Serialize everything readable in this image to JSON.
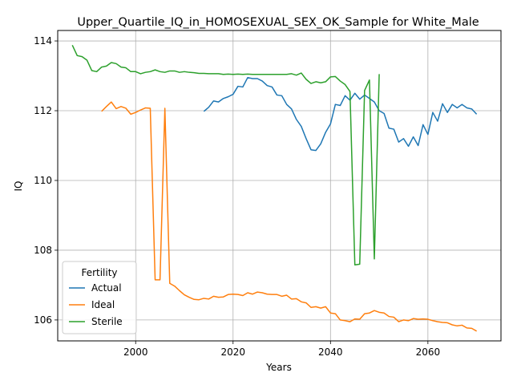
{
  "chart_data": {
    "type": "line",
    "title": "Upper_Quartile_IQ_in_HOMOSEXUAL_SEX_OK_Sample for White_Male",
    "xlabel": "Years",
    "ylabel": "IQ",
    "xlim": [
      1984,
      2075
    ],
    "ylim": [
      105.4,
      114.3
    ],
    "xticks": [
      2000,
      2020,
      2040,
      2060
    ],
    "yticks": [
      106,
      108,
      110,
      112,
      114
    ],
    "grid": true,
    "legend": {
      "title": "Fertility",
      "position": "lower-left"
    },
    "colors": {
      "Actual": "#1f77b4",
      "Ideal": "#ff7f0e",
      "Sterile": "#2ca02c"
    },
    "series": [
      {
        "name": "Actual",
        "x": [
          2014,
          2015,
          2016,
          2017,
          2018,
          2019,
          2020,
          2021,
          2022,
          2023,
          2024,
          2025,
          2026,
          2027,
          2028,
          2029,
          2030,
          2031,
          2032,
          2033,
          2034,
          2035,
          2036,
          2037,
          2038,
          2039,
          2040,
          2041,
          2042,
          2043,
          2044,
          2045,
          2046,
          2047,
          2048,
          2049,
          2050,
          2051,
          2052,
          2053,
          2054,
          2055,
          2056,
          2057,
          2058,
          2059,
          2060,
          2061,
          2062,
          2063,
          2064,
          2065,
          2066,
          2067,
          2068,
          2069,
          2070
        ],
        "y": [
          111.98,
          112.1,
          112.28,
          112.25,
          112.35,
          112.4,
          112.47,
          112.7,
          112.68,
          112.95,
          112.92,
          112.92,
          112.85,
          112.72,
          112.68,
          112.45,
          112.43,
          112.18,
          112.05,
          111.75,
          111.55,
          111.2,
          110.88,
          110.86,
          111.05,
          111.38,
          111.62,
          112.18,
          112.15,
          112.43,
          112.3,
          112.5,
          112.33,
          112.45,
          112.35,
          112.25,
          112.0,
          111.92,
          111.5,
          111.47,
          111.1,
          111.2,
          110.98,
          111.25,
          111.0,
          111.6,
          111.32,
          111.95,
          111.7,
          112.2,
          111.95,
          112.18,
          112.08,
          112.18,
          112.08,
          112.05,
          111.9
        ]
      },
      {
        "name": "Ideal",
        "x": [
          1993,
          1994,
          1995,
          1996,
          1997,
          1998,
          1999,
          2000,
          2001,
          2002,
          2003,
          2004,
          2005,
          2006,
          2007,
          2008,
          2009,
          2010,
          2011,
          2012,
          2013,
          2014,
          2015,
          2016,
          2017,
          2018,
          2019,
          2020,
          2021,
          2022,
          2023,
          2024,
          2025,
          2026,
          2027,
          2028,
          2029,
          2030,
          2031,
          2032,
          2033,
          2034,
          2035,
          2036,
          2037,
          2038,
          2039,
          2040,
          2041,
          2042,
          2043,
          2044,
          2045,
          2046,
          2047,
          2048,
          2049,
          2050,
          2051,
          2052,
          2053,
          2054,
          2055,
          2056,
          2057,
          2058,
          2059,
          2060,
          2061,
          2062,
          2063,
          2064,
          2065,
          2066,
          2067,
          2068,
          2069,
          2070
        ],
        "y": [
          111.98,
          112.12,
          112.25,
          112.06,
          112.12,
          112.07,
          111.9,
          111.95,
          112.02,
          112.08,
          112.07,
          107.15,
          107.15,
          112.07,
          107.05,
          106.97,
          106.84,
          106.72,
          106.65,
          106.59,
          106.58,
          106.62,
          106.6,
          106.68,
          106.65,
          106.66,
          106.73,
          106.74,
          106.73,
          106.7,
          106.78,
          106.74,
          106.8,
          106.78,
          106.74,
          106.73,
          106.73,
          106.68,
          106.71,
          106.6,
          106.61,
          106.52,
          106.49,
          106.36,
          106.38,
          106.34,
          106.38,
          106.2,
          106.18,
          106.0,
          105.98,
          105.95,
          106.03,
          106.02,
          106.18,
          106.2,
          106.27,
          106.22,
          106.2,
          106.1,
          106.08,
          105.95,
          106.0,
          105.98,
          106.04,
          106.02,
          106.03,
          106.02,
          105.98,
          105.95,
          105.93,
          105.92,
          105.86,
          105.83,
          105.85,
          105.77,
          105.76,
          105.68
        ]
      },
      {
        "name": "Sterile",
        "x": [
          1987,
          1988,
          1989,
          1990,
          1991,
          1992,
          1993,
          1994,
          1995,
          1996,
          1997,
          1998,
          1999,
          2000,
          2001,
          2002,
          2003,
          2004,
          2005,
          2006,
          2007,
          2008,
          2009,
          2010,
          2011,
          2012,
          2013,
          2014,
          2015,
          2016,
          2017,
          2018,
          2019,
          2020,
          2021,
          2022,
          2023,
          2024,
          2025,
          2026,
          2027,
          2028,
          2029,
          2030,
          2031,
          2032,
          2033,
          2034,
          2035,
          2036,
          2037,
          2038,
          2039,
          2040,
          2041,
          2042,
          2043,
          2044,
          2045,
          2046,
          2047,
          2048,
          2049,
          2050
        ],
        "y": [
          113.88,
          113.58,
          113.55,
          113.45,
          113.15,
          113.12,
          113.25,
          113.28,
          113.38,
          113.35,
          113.25,
          113.23,
          113.12,
          113.12,
          113.06,
          113.1,
          113.12,
          113.17,
          113.12,
          113.1,
          113.14,
          113.14,
          113.1,
          113.12,
          113.1,
          113.09,
          113.07,
          113.07,
          113.06,
          113.06,
          113.06,
          113.04,
          113.05,
          113.04,
          113.05,
          113.04,
          113.05,
          113.04,
          113.04,
          113.04,
          113.04,
          113.04,
          113.04,
          113.04,
          113.04,
          113.06,
          113.02,
          113.08,
          112.9,
          112.78,
          112.83,
          112.8,
          112.83,
          112.97,
          112.98,
          112.85,
          112.75,
          112.55,
          107.58,
          107.6,
          112.58,
          112.88,
          107.75,
          113.05
        ]
      }
    ]
  }
}
